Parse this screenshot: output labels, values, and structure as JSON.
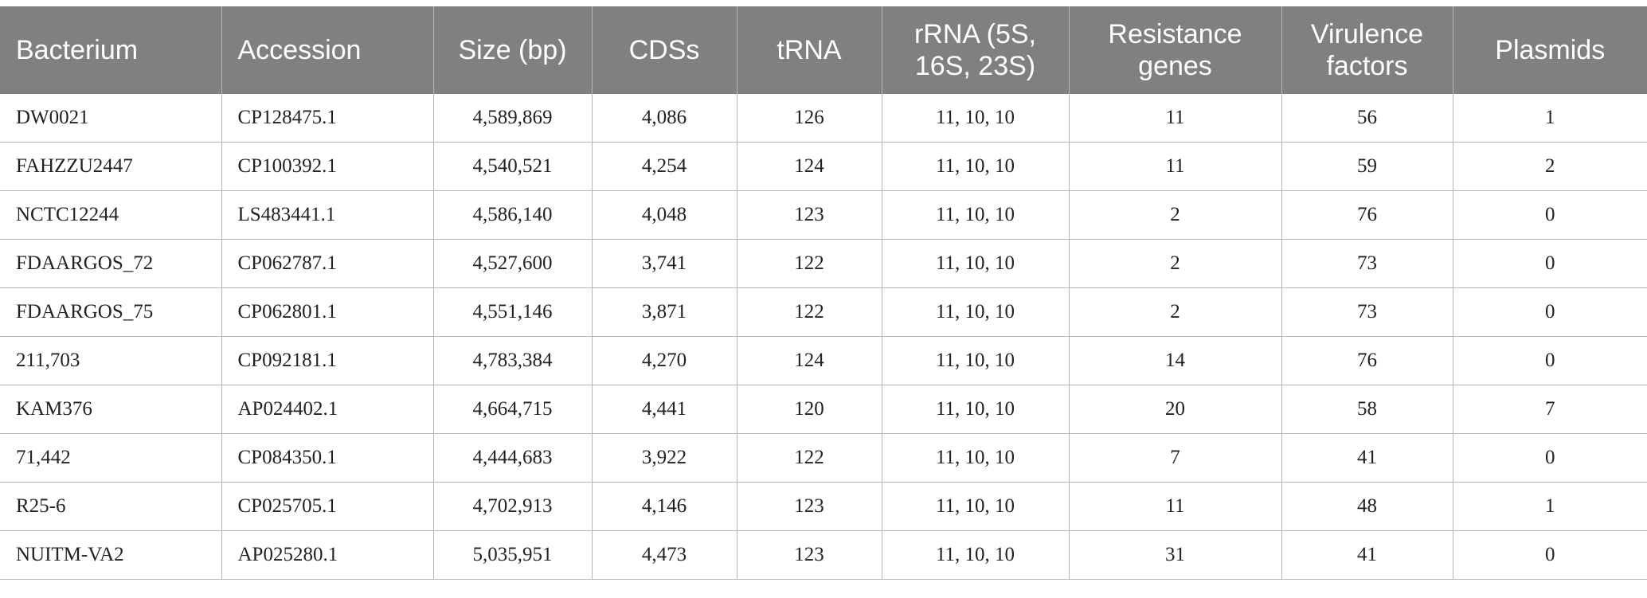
{
  "table": {
    "headers": [
      "Bacterium",
      "Accession",
      "Size (bp)",
      "CDSs",
      "tRNA",
      "rRNA (5S, 16S, 23S)",
      "Resistance genes",
      "Virulence factors",
      "Plasmids"
    ],
    "rows": [
      [
        "DW0021",
        "CP128475.1",
        "4,589,869",
        "4,086",
        "126",
        "11, 10, 10",
        "11",
        "56",
        "1"
      ],
      [
        "FAHZZU2447",
        "CP100392.1",
        "4,540,521",
        "4,254",
        "124",
        "11, 10, 10",
        "11",
        "59",
        "2"
      ],
      [
        "NCTC12244",
        "LS483441.1",
        "4,586,140",
        "4,048",
        "123",
        "11, 10, 10",
        "2",
        "76",
        "0"
      ],
      [
        "FDAARGOS_72",
        "CP062787.1",
        "4,527,600",
        "3,741",
        "122",
        "11, 10, 10",
        "2",
        "73",
        "0"
      ],
      [
        "FDAARGOS_75",
        "CP062801.1",
        "4,551,146",
        "3,871",
        "122",
        "11, 10, 10",
        "2",
        "73",
        "0"
      ],
      [
        "211,703",
        "CP092181.1",
        "4,783,384",
        "4,270",
        "124",
        "11, 10, 10",
        "14",
        "76",
        "0"
      ],
      [
        "KAM376",
        "AP024402.1",
        "4,664,715",
        "4,441",
        "120",
        "11, 10, 10",
        "20",
        "58",
        "7"
      ],
      [
        "71,442",
        "CP084350.1",
        "4,444,683",
        "3,922",
        "122",
        "11, 10, 10",
        "7",
        "41",
        "0"
      ],
      [
        "R25-6",
        "CP025705.1",
        "4,702,913",
        "4,146",
        "123",
        "11, 10, 10",
        "11",
        "48",
        "1"
      ],
      [
        "NUITM-VA2",
        "AP025280.1",
        "5,035,951",
        "4,473",
        "123",
        "11, 10, 10",
        "31",
        "41",
        "0"
      ]
    ]
  }
}
